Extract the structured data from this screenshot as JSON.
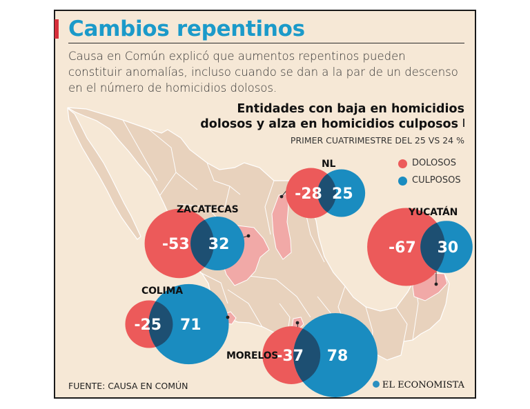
{
  "header": {
    "title": "Cambios repentinos",
    "lede": "Causa en Común explicó que aumentos repentinos pueden constituir anomalías, incluso cuando se dan a la par de un descenso en el número de homicidios dolosos."
  },
  "chart_data": {
    "type": "bubble-map",
    "title_line1": "Entidades con baja en homicidios",
    "title_line2": "dolosos y alza en homicidios culposos",
    "subtitle": "PRIMER CUATRIMESTRE DEL 25 VS 24 %",
    "legend": [
      {
        "name": "DOLOSOS",
        "color": "#ec5a5a"
      },
      {
        "name": "CULPOSOS",
        "color": "#1a8cc0"
      }
    ],
    "states": [
      {
        "name": "NL",
        "dolosos": -28,
        "culposos": 25
      },
      {
        "name": "ZACATECAS",
        "dolosos": -53,
        "culposos": 32
      },
      {
        "name": "YUCATÁN",
        "dolosos": -67,
        "culposos": 30
      },
      {
        "name": "COLIMA",
        "dolosos": -25,
        "culposos": 71
      },
      {
        "name": "MORELOS",
        "dolosos": -37,
        "culposos": 78
      }
    ]
  },
  "footer": {
    "source": "FUENTE: CAUSA EN COMÚN",
    "brand": "EL ECONOMISTA"
  },
  "colors": {
    "map_land": "#e8d2bd",
    "map_border": "#ffffff",
    "highlight": "#f1a9a7",
    "accent_title": "#1b9ac9",
    "accent_bar": "#d62f3b"
  }
}
